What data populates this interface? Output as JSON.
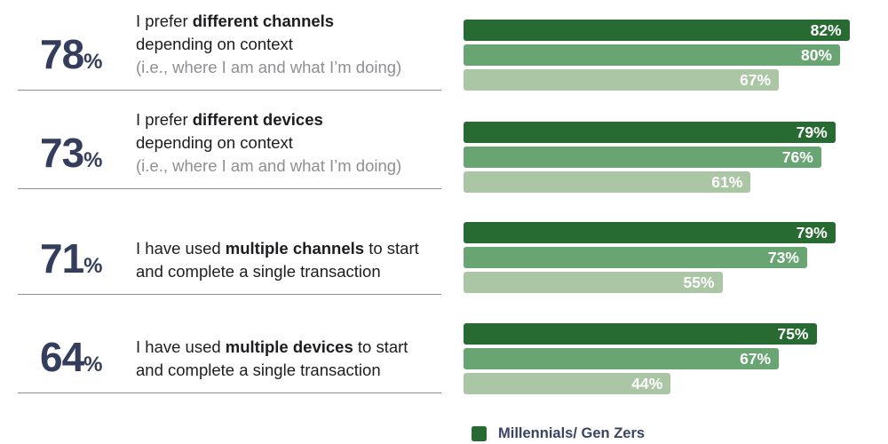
{
  "rows": [
    {
      "stat": "78",
      "unit": "%",
      "desc": {
        "pre": "I prefer ",
        "bold": "different channels",
        "post": "",
        "line2": "depending on context",
        "note": "(i.e., where I am and what I’m doing)"
      }
    },
    {
      "stat": "73",
      "unit": "%",
      "desc": {
        "pre": "I prefer ",
        "bold": "different devices",
        "post": "",
        "line2": "depending on context",
        "note": "(i.e., where I am and what I’m doing)"
      }
    },
    {
      "stat": "71",
      "unit": "%",
      "desc": {
        "pre": "I have used ",
        "bold": "multiple channels",
        "post": " to start",
        "line2": "and complete a single transaction",
        "note": ""
      }
    },
    {
      "stat": "64",
      "unit": "%",
      "desc": {
        "pre": "I have used ",
        "bold": "multiple devices",
        "post": " to start",
        "line2": "and complete a single transaction",
        "note": ""
      }
    }
  ],
  "chart_data": {
    "type": "bar",
    "orientation": "horizontal",
    "categories": [
      "I prefer different channels depending on context (i.e., where I am and what I'm doing)",
      "I prefer different devices depending on context (i.e., where I am and what I'm doing)",
      "I have used multiple channels to start and complete a single transaction",
      "I have used multiple devices to start and complete a single transaction"
    ],
    "overall": [
      78,
      73,
      71,
      64
    ],
    "series": [
      {
        "name": "Millennials/ Gen Zers",
        "color": "#276b32",
        "values": [
          82,
          79,
          79,
          75
        ]
      },
      {
        "name": "",
        "color": "#69a572",
        "values": [
          80,
          76,
          73,
          67
        ]
      },
      {
        "name": "",
        "color": "#aac6a5",
        "values": [
          67,
          61,
          55,
          44
        ]
      }
    ],
    "value_suffix": "%",
    "value_labels_inside": true,
    "axis": "none",
    "grid": false,
    "legend_position": "bottom-left-of-bars"
  },
  "colors": {
    "bar_dark_green": "#276b32",
    "bar_mid_green": "#69a572",
    "bar_light_green": "#aac6a5",
    "stat_navy": "#343e5c",
    "text_dark": "#1d1d20",
    "text_gray_note": "#8e8f93",
    "separator_gray": "#8f8f8f",
    "bar_label_white": "#ffffff"
  }
}
